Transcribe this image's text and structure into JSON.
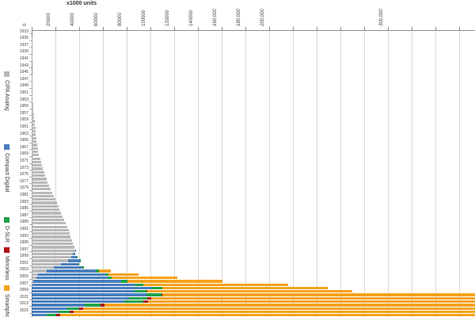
{
  "chart_data": {
    "type": "bar",
    "orientation": "horizontal",
    "stacked": true,
    "title": "x1000 units",
    "xlabel": "x1000 units",
    "ylabel": "year",
    "xlim": [
      0,
      373333
    ],
    "gridline_step": 20000,
    "gridline_max": 360000,
    "grid": true,
    "legend_position": "left-vertical",
    "x_tick_labels": [
      {
        "value": 0,
        "text": "0",
        "italic": false
      },
      {
        "value": 20000,
        "text": "20000",
        "italic": false
      },
      {
        "value": 40000,
        "text": "40000",
        "italic": false
      },
      {
        "value": 60000,
        "text": "60000",
        "italic": false
      },
      {
        "value": 80000,
        "text": "80000",
        "italic": false
      },
      {
        "value": 100000,
        "text": "100000",
        "italic": false
      },
      {
        "value": 120000,
        "text": "120000",
        "italic": false
      },
      {
        "value": 140000,
        "text": "140000",
        "italic": false
      },
      {
        "value": 160000,
        "text": "160,000",
        "italic": true
      },
      {
        "value": 180000,
        "text": "180,000",
        "italic": true
      },
      {
        "value": 200000,
        "text": "200,000",
        "italic": true
      },
      {
        "value": 300000,
        "text": "300,000",
        "italic": true
      }
    ],
    "year_start": 1933,
    "year_end": 2016,
    "year_labels_every": 2,
    "series": [
      {
        "name": "CIPA Analog",
        "color": "#b9b9b9",
        "first_year": 1933,
        "values": [
          30,
          40,
          60,
          80,
          100,
          120,
          140,
          120,
          80,
          40,
          20,
          10,
          10,
          80,
          150,
          250,
          350,
          450,
          600,
          750,
          900,
          1100,
          1300,
          1600,
          1900,
          2100,
          2500,
          2800,
          3100,
          3300,
          3600,
          3900,
          4200,
          4600,
          5000,
          5500,
          6200,
          7000,
          7700,
          8500,
          9500,
          10400,
          11400,
          12400,
          13500,
          14500,
          15800,
          17200,
          18800,
          20200,
          21400,
          22400,
          23400,
          24800,
          26200,
          27400,
          28800,
          30200,
          31200,
          32000,
          32800,
          33800,
          34800,
          35800,
          36700,
          34800,
          33100,
          30800,
          24500,
          18400,
          12600,
          5400,
          4000,
          1500,
          500,
          150,
          0,
          0,
          0,
          0,
          0,
          0,
          0,
          0
        ]
      },
      {
        "name": "Compact Digital",
        "color": "#4a7ebc",
        "first_year": 1997,
        "values": [
          200,
          1900,
          5100,
          10200,
          14700,
          24500,
          41600,
          56800,
          59800,
          73800,
          86000,
          100400,
          86900,
          96700,
          81700,
          78000,
          44400,
          29300,
          22200,
          12600
        ]
      },
      {
        "name": "D-SLR",
        "color": "#1ea24a",
        "first_year": 1999,
        "values": [
          180,
          220,
          430,
          1100,
          2400,
          2500,
          3800,
          5200,
          7500,
          9700,
          9900,
          12700,
          15700,
          16200,
          13900,
          10600,
          9800,
          8400
        ]
      },
      {
        "name": "Mirrorless",
        "color": "#b01116",
        "first_year": 2009,
        "values": [
          500,
          900,
          3600,
          3950,
          3300,
          3200,
          3300,
          3150
        ]
      },
      {
        "name": "Smartphone",
        "color": "#f6a21d",
        "first_year": 2003,
        "values": [
          10000,
          25000,
          55000,
          80000,
          122300,
          139300,
          172400,
          296600,
          472000,
          680100,
          969700,
          1244700,
          1423900,
          1495400
        ]
      }
    ]
  },
  "legend": {
    "items": [
      {
        "label": "CIPA Analog",
        "color": "#b9b9b9"
      },
      {
        "label": "Compact Digital",
        "color": "#4a7ebc"
      },
      {
        "label": "D-SLR",
        "color": "#1ea24a"
      },
      {
        "label": "Mirrorless",
        "color": "#b01116"
      },
      {
        "label": "Smartphone",
        "color": "#f6a21d"
      }
    ]
  }
}
